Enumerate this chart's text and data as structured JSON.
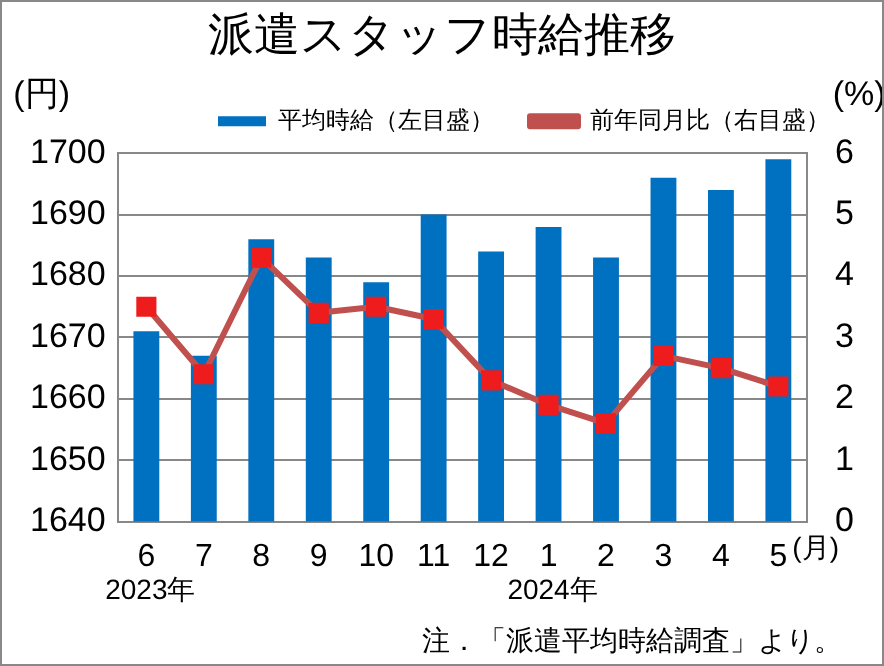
{
  "chart_data": {
    "type": "bar",
    "title": "派遣スタッフ時給推移",
    "ylabel": "(円)",
    "y2label": "(%)",
    "xlabel": "(月)",
    "categories": [
      "6",
      "7",
      "8",
      "9",
      "10",
      "11",
      "12",
      "1",
      "2",
      "3",
      "4",
      "5"
    ],
    "series": [
      {
        "name": "平均時給（左目盛）",
        "color": "#0070c0",
        "values": [
          1671,
          1667,
          1686,
          1683,
          1679,
          1690,
          1684,
          1688,
          1683,
          1696,
          1694,
          1699
        ]
      },
      {
        "name": "前年同月比（右目盛）",
        "type": "line",
        "axis": "y2",
        "color": "#c0504d",
        "marker": "square",
        "values": [
          3.5,
          2.4,
          4.3,
          3.4,
          3.5,
          3.3,
          2.3,
          1.9,
          1.6,
          2.7,
          2.5,
          2.2
        ]
      }
    ],
    "ylim": [
      1640,
      1700
    ],
    "yticks": [
      1640,
      1650,
      1660,
      1670,
      1680,
      1690,
      1700
    ],
    "y2lim": [
      0,
      6
    ],
    "y2ticks": [
      0,
      1,
      2,
      3,
      4,
      5,
      6
    ],
    "grid": "y",
    "legend": "top",
    "annotations": [
      "2023年",
      "2024年",
      "注．「派遣平均時給調査」より。"
    ]
  }
}
